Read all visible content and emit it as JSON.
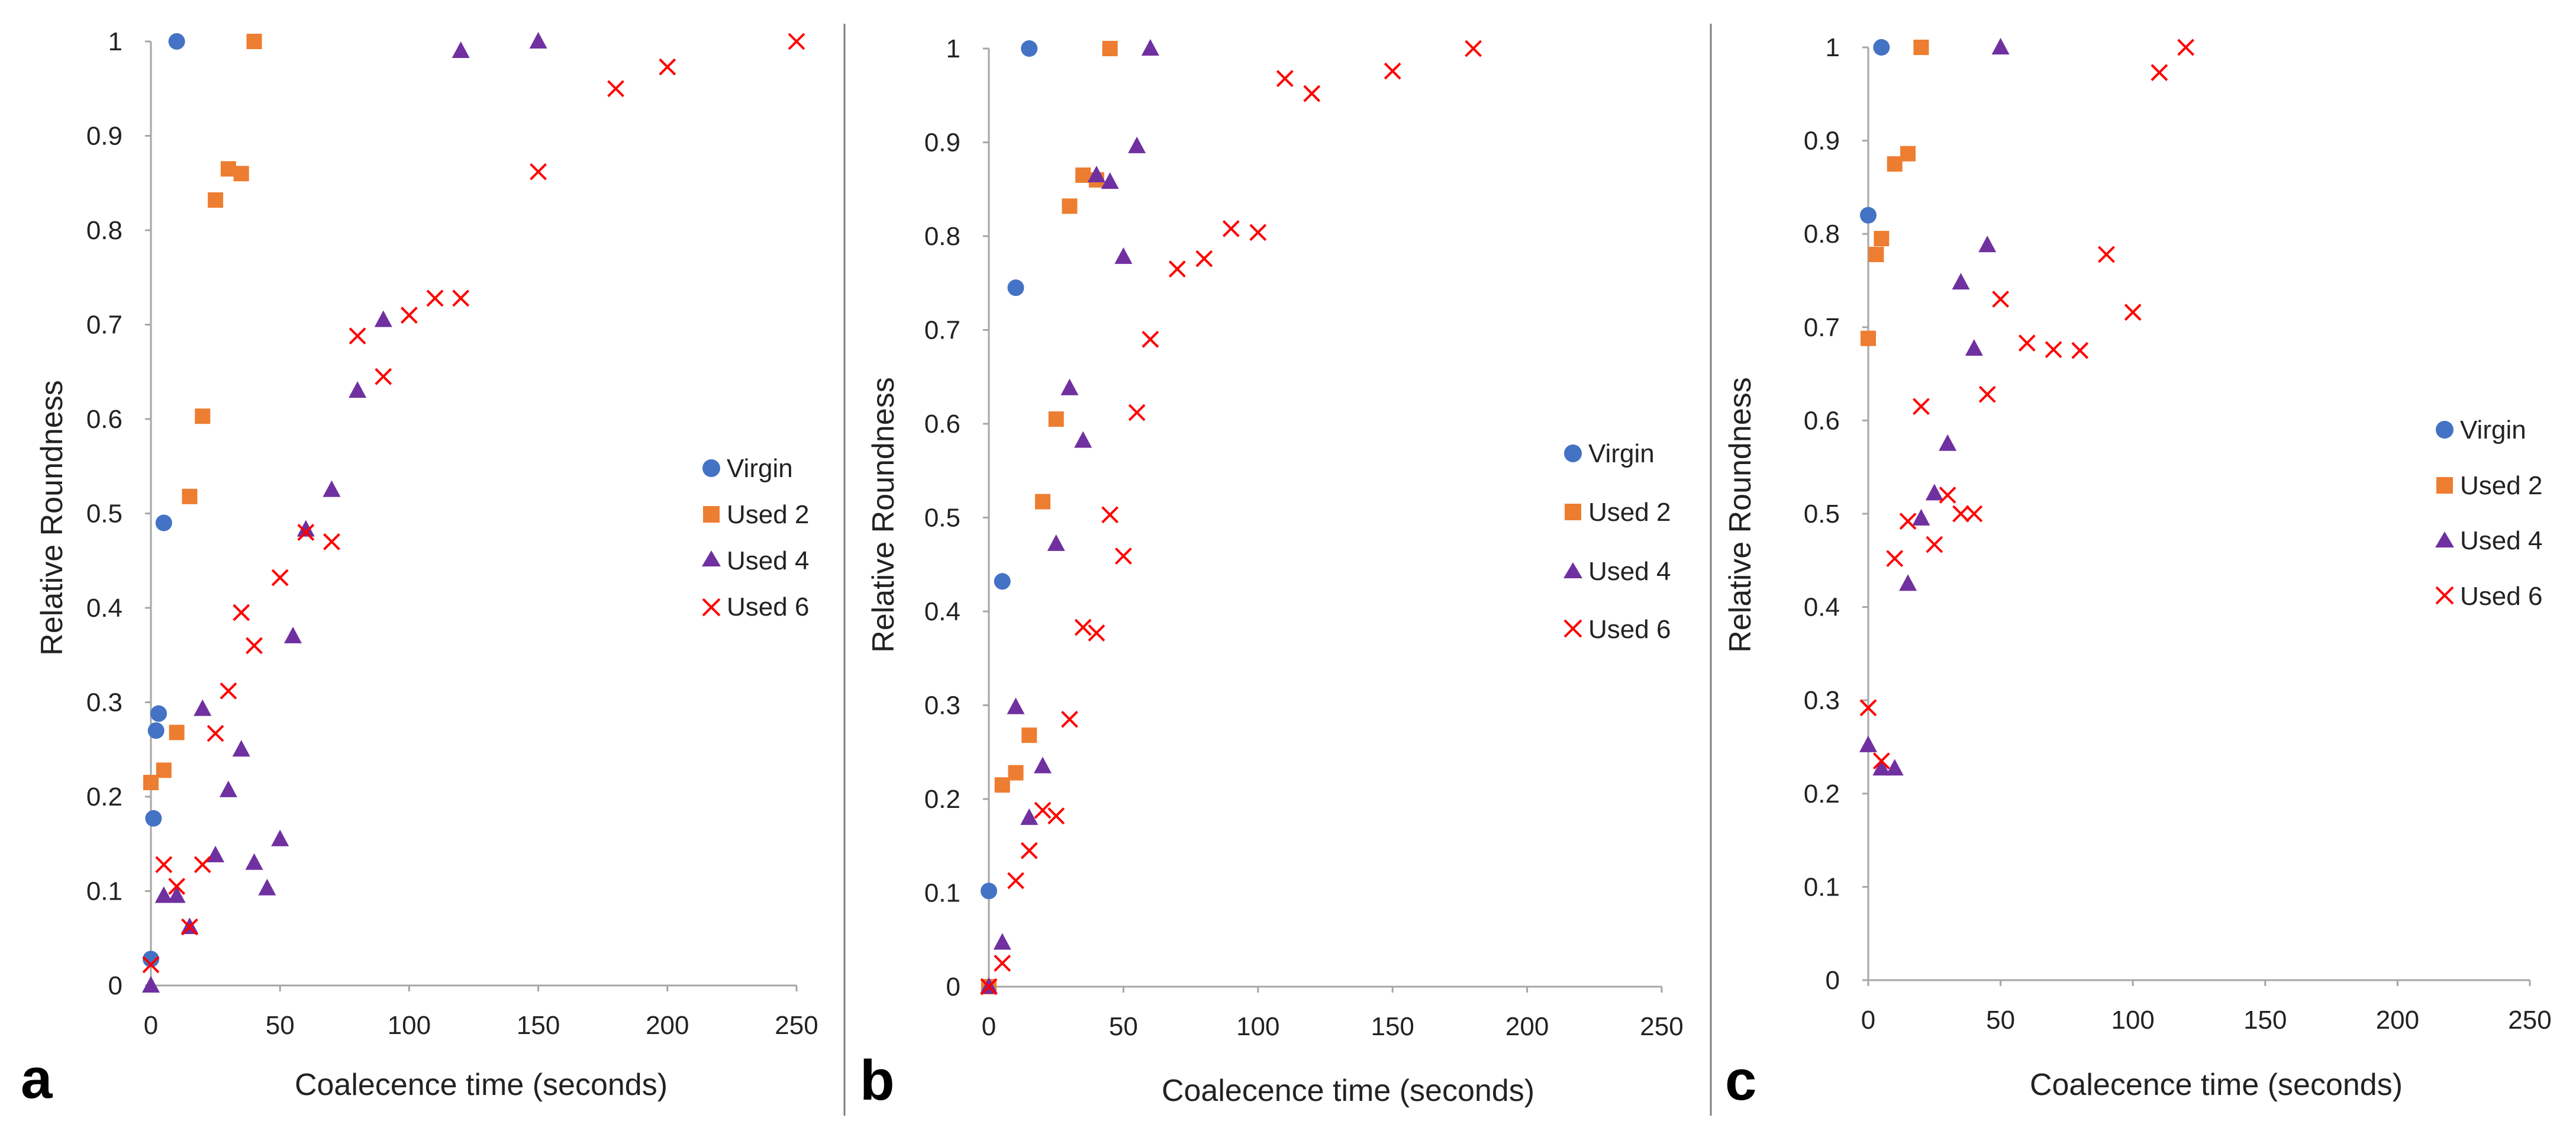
{
  "colors": {
    "virgin": "#4472C4",
    "used2": "#ED7D31",
    "used4": "#7030A0",
    "used6": "#FF0000",
    "axis": "#A6A6A6",
    "divider": "#7F7F7F"
  },
  "chart_data": [
    {
      "type": "scatter",
      "panel": "a",
      "xlabel": "Coalecence time (seconds)",
      "ylabel": "Relative Roundness",
      "xlim": [
        0,
        250
      ],
      "ylim": [
        0,
        1
      ],
      "xticks": [
        "0",
        "50",
        "100",
        "150",
        "200",
        "250"
      ],
      "yticks": [
        "0",
        "0.1",
        "0.2",
        "0.3",
        "0.4",
        "0.5",
        "0.6",
        "0.7",
        "0.8",
        "0.9",
        "1"
      ],
      "legend": [
        "Virgin",
        "Used 2",
        "Used 4",
        "Used 6"
      ],
      "series": [
        {
          "name": "Virgin",
          "marker": "circle",
          "x": [
            0,
            1,
            2,
            3,
            5,
            10
          ],
          "y": [
            0.028,
            0.177,
            0.27,
            0.288,
            0.49,
            1.0
          ]
        },
        {
          "name": "Used 2",
          "marker": "square",
          "x": [
            0,
            5,
            10,
            15,
            20,
            25,
            30,
            35,
            40
          ],
          "y": [
            0.215,
            0.228,
            0.268,
            0.518,
            0.603,
            0.832,
            0.865,
            0.86,
            1.0
          ]
        },
        {
          "name": "Used 4",
          "marker": "triangle",
          "x": [
            0,
            5,
            10,
            15,
            20,
            25,
            30,
            35,
            40,
            45,
            50,
            55,
            60,
            70,
            80,
            90,
            120,
            150
          ],
          "y": [
            0.0,
            0.095,
            0.095,
            0.062,
            0.293,
            0.138,
            0.207,
            0.25,
            0.13,
            0.103,
            0.155,
            0.37,
            0.483,
            0.525,
            0.63,
            0.705,
            0.99,
            1.0
          ]
        },
        {
          "name": "Used 6",
          "marker": "x",
          "x": [
            0,
            5,
            10,
            15,
            20,
            25,
            30,
            35,
            40,
            50,
            60,
            70,
            80,
            90,
            100,
            110,
            120,
            150,
            180,
            200,
            250
          ],
          "y": [
            0.022,
            0.128,
            0.105,
            0.062,
            0.128,
            0.267,
            0.312,
            0.395,
            0.36,
            0.432,
            0.48,
            0.47,
            0.688,
            0.645,
            0.71,
            0.728,
            0.728,
            0.862,
            0.95,
            0.973,
            1.0
          ]
        }
      ]
    },
    {
      "type": "scatter",
      "panel": "b",
      "xlabel": "Coalecence time (seconds)",
      "ylabel": "Relative Roundness",
      "xlim": [
        0,
        250
      ],
      "ylim": [
        0,
        1
      ],
      "xticks": [
        "0",
        "50",
        "100",
        "150",
        "200",
        "250"
      ],
      "yticks": [
        "0",
        "0.1",
        "0.2",
        "0.3",
        "0.4",
        "0.5",
        "0.6",
        "0.7",
        "0.8",
        "0.9",
        "1"
      ],
      "legend": [
        "Virgin",
        "Used 2",
        "Used 4",
        "Used 6"
      ],
      "series": [
        {
          "name": "Virgin",
          "marker": "circle",
          "x": [
            0,
            5,
            10,
            15
          ],
          "y": [
            0.102,
            0.432,
            0.745,
            1.0
          ]
        },
        {
          "name": "Used 2",
          "marker": "square",
          "x": [
            0,
            5,
            10,
            15,
            20,
            25,
            30,
            35,
            40,
            45
          ],
          "y": [
            0.0,
            0.215,
            0.228,
            0.268,
            0.517,
            0.605,
            0.832,
            0.865,
            0.86,
            1.0
          ]
        },
        {
          "name": "Used 4",
          "marker": "triangle",
          "x": [
            0,
            5,
            10,
            15,
            20,
            25,
            30,
            35,
            40,
            45,
            50,
            55,
            60
          ],
          "y": [
            0.0,
            0.047,
            0.298,
            0.18,
            0.235,
            0.472,
            0.638,
            0.582,
            0.865,
            0.858,
            0.778,
            0.896,
            1.0
          ]
        },
        {
          "name": "Used 6",
          "marker": "x",
          "x": [
            0,
            5,
            10,
            15,
            20,
            25,
            30,
            35,
            40,
            45,
            50,
            55,
            60,
            70,
            80,
            90,
            100,
            110,
            120,
            150,
            180
          ],
          "y": [
            0.0,
            0.025,
            0.113,
            0.145,
            0.188,
            0.182,
            0.285,
            0.383,
            0.377,
            0.503,
            0.459,
            0.612,
            0.69,
            0.765,
            0.776,
            0.808,
            0.804,
            0.968,
            0.952,
            0.976,
            1.0
          ]
        }
      ]
    },
    {
      "type": "scatter",
      "panel": "c",
      "xlabel": "Coalecence time (seconds)",
      "ylabel": "Relative Roundness",
      "xlim": [
        0,
        250
      ],
      "ylim": [
        0,
        1
      ],
      "xticks": [
        "0",
        "50",
        "100",
        "150",
        "200",
        "250"
      ],
      "yticks": [
        "0",
        "0.1",
        "0.2",
        "0.3",
        "0.4",
        "0.5",
        "0.6",
        "0.7",
        "0.8",
        "0.9",
        "1"
      ],
      "legend": [
        "Virgin",
        "Used 2",
        "Used 4",
        "Used 6"
      ],
      "series": [
        {
          "name": "Virgin",
          "marker": "circle",
          "x": [
            0,
            5
          ],
          "y": [
            0.82,
            1.0
          ]
        },
        {
          "name": "Used 2",
          "marker": "square",
          "x": [
            0,
            3,
            5,
            10,
            15,
            20
          ],
          "y": [
            0.688,
            0.778,
            0.795,
            0.875,
            0.886,
            1.0
          ]
        },
        {
          "name": "Used 4",
          "marker": "triangle",
          "x": [
            0,
            5,
            10,
            15,
            20,
            25,
            30,
            35,
            40,
            45,
            50
          ],
          "y": [
            0.252,
            0.227,
            0.227,
            0.425,
            0.495,
            0.522,
            0.575,
            0.748,
            0.677,
            0.788,
            1.0
          ]
        },
        {
          "name": "Used 6",
          "marker": "x",
          "x": [
            0,
            5,
            10,
            15,
            20,
            25,
            30,
            35,
            40,
            45,
            50,
            60,
            70,
            80,
            90,
            100,
            110,
            120
          ],
          "y": [
            0.292,
            0.235,
            0.452,
            0.492,
            0.615,
            0.467,
            0.52,
            0.5,
            0.5,
            0.628,
            0.73,
            0.683,
            0.676,
            0.675,
            0.778,
            0.716,
            0.973,
            1.0
          ]
        }
      ]
    }
  ]
}
